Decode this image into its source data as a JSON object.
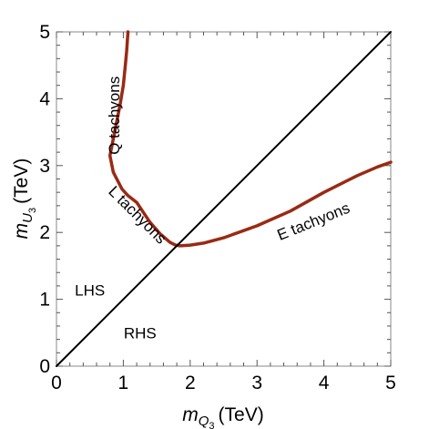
{
  "chart_data": {
    "type": "line",
    "xlabel": {
      "var": "m",
      "sub": "Q",
      "subsub": "3",
      "unit": "(TeV)"
    },
    "ylabel": {
      "var": "m",
      "sub": "U",
      "subsub": "3",
      "unit": "(TeV)"
    },
    "xlim": [
      0,
      5
    ],
    "ylim": [
      0,
      5
    ],
    "xticks": [
      0,
      1,
      2,
      3,
      4,
      5
    ],
    "yticks": [
      0,
      1,
      2,
      3,
      4,
      5
    ],
    "tick_labels_x": [
      "0",
      "1",
      "2",
      "3",
      "4",
      "5"
    ],
    "tick_labels_y": [
      "0",
      "1",
      "2",
      "3",
      "4",
      "5"
    ],
    "grid": false,
    "series": [
      {
        "role": "boundary",
        "color": "#9a2a14",
        "points": [
          [
            1.07,
            5.0
          ],
          [
            1.05,
            4.72
          ],
          [
            1.03,
            4.5
          ],
          [
            1.0,
            4.2
          ],
          [
            0.95,
            3.9
          ],
          [
            0.88,
            3.55
          ],
          [
            0.82,
            3.25
          ],
          [
            0.8,
            3.15
          ],
          [
            0.85,
            2.9
          ],
          [
            0.98,
            2.65
          ],
          [
            1.07,
            2.55
          ],
          [
            1.2,
            2.45
          ],
          [
            1.3,
            2.3
          ],
          [
            1.4,
            2.15
          ],
          [
            1.55,
            1.98
          ],
          [
            1.7,
            1.85
          ],
          [
            1.78,
            1.81
          ],
          [
            1.85,
            1.8
          ],
          [
            2.0,
            1.81
          ],
          [
            2.2,
            1.84
          ],
          [
            2.5,
            1.92
          ],
          [
            3.0,
            2.1
          ],
          [
            3.5,
            2.32
          ],
          [
            4.0,
            2.6
          ],
          [
            4.5,
            2.85
          ],
          [
            4.8,
            2.98
          ],
          [
            5.0,
            3.05
          ]
        ]
      },
      {
        "role": "diagonal",
        "color": "#000000",
        "points": [
          [
            0,
            0
          ],
          [
            5,
            5
          ]
        ]
      }
    ],
    "annotations": [
      {
        "text": "Q tachyons",
        "x": 0.88,
        "y": 3.75,
        "rotate": -90
      },
      {
        "text": "L tachyons",
        "x": 1.2,
        "y": 2.25,
        "rotate": 45
      },
      {
        "text": "E tachyons",
        "x": 3.85,
        "y": 2.15,
        "rotate": -22
      },
      {
        "text": "LHS",
        "x": 0.5,
        "y": 1.12,
        "rotate": 0
      },
      {
        "text": "RHS",
        "x": 1.25,
        "y": 0.48,
        "rotate": 0
      }
    ]
  }
}
